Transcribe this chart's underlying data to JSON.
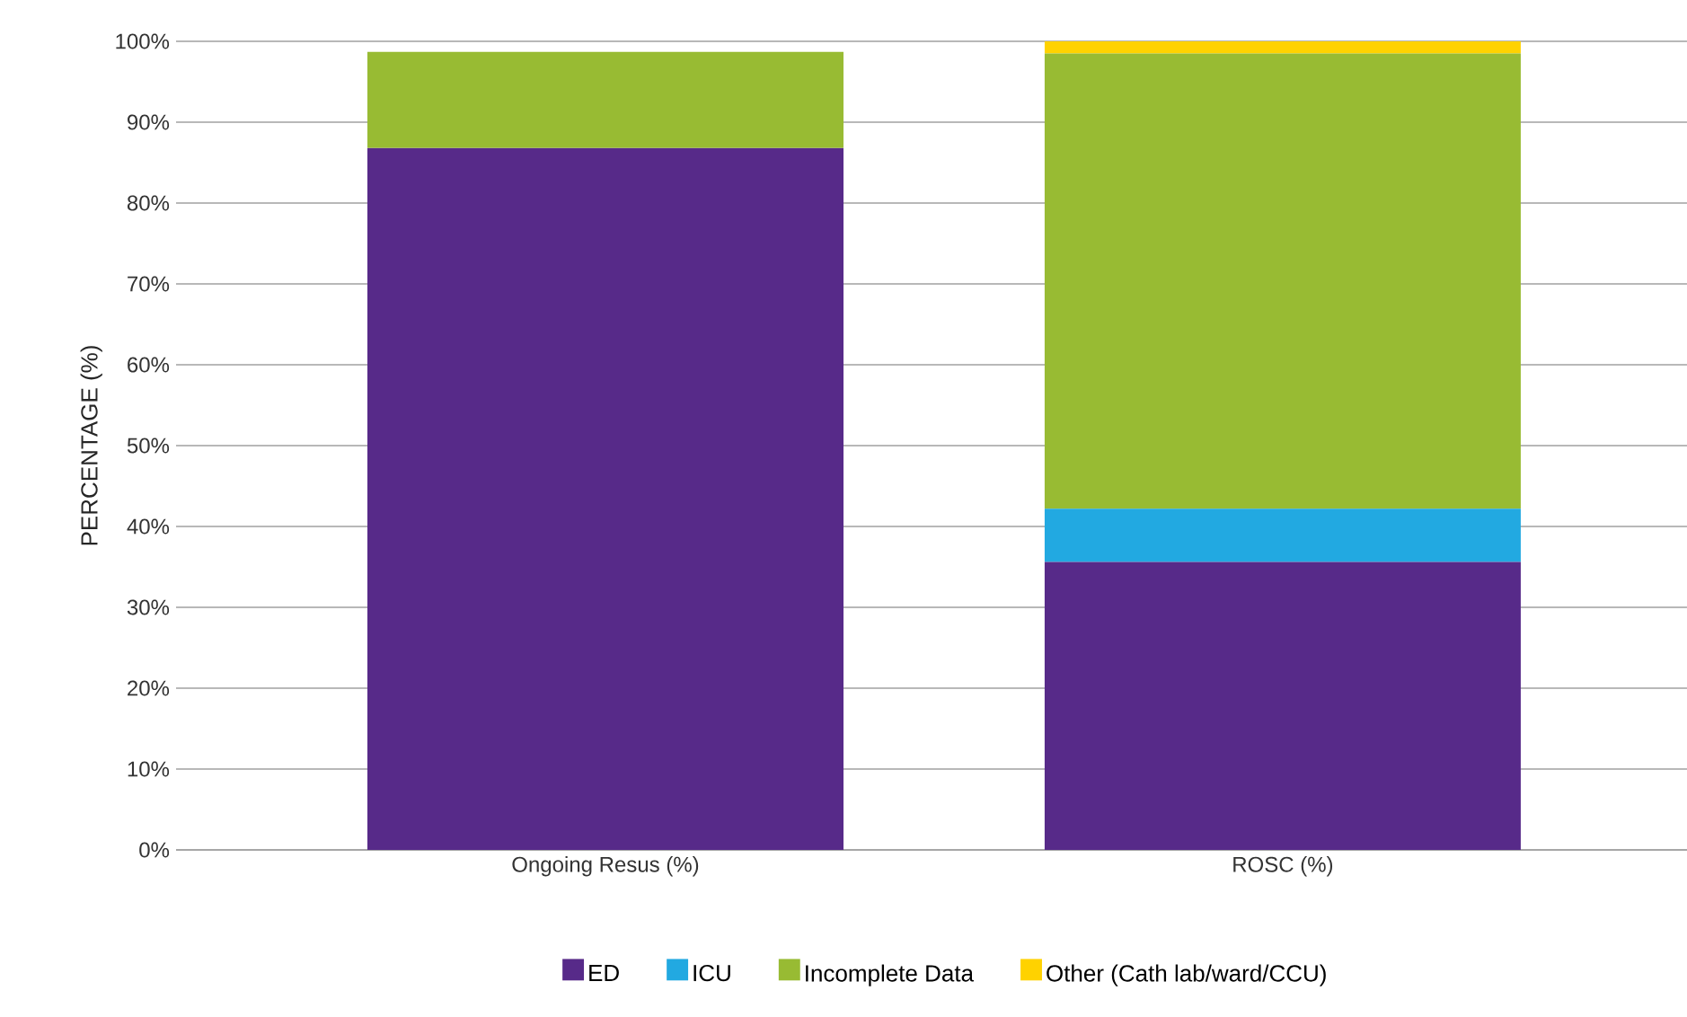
{
  "chart_data": {
    "type": "bar",
    "stacked": true,
    "ylabel": "PERCENTAGE (%)",
    "categories": [
      "Ongoing Resus (%)",
      "ROSC (%)"
    ],
    "series": [
      {
        "name": "ED",
        "color": "#572a89",
        "values": [
          86.8,
          35.6
        ]
      },
      {
        "name": "ICU",
        "color": "#22a9e1",
        "values": [
          0,
          6.6
        ]
      },
      {
        "name": "Incomplete Data",
        "color": "#98bb33",
        "values": [
          11.9,
          56.3
        ]
      },
      {
        "name": "Other (Cath lab/ward/CCU)",
        "color": "#ffd200",
        "values": [
          0,
          1.5
        ]
      }
    ],
    "ylim": [
      0,
      100
    ],
    "yticks": [
      {
        "value": 0,
        "label": "0%"
      },
      {
        "value": 10,
        "label": "10%"
      },
      {
        "value": 20,
        "label": "20%"
      },
      {
        "value": 30,
        "label": "30%"
      },
      {
        "value": 40,
        "label": "40%"
      },
      {
        "value": 50,
        "label": "50%"
      },
      {
        "value": 60,
        "label": "60%"
      },
      {
        "value": 70,
        "label": "70%"
      },
      {
        "value": 80,
        "label": "80%"
      },
      {
        "value": 90,
        "label": "90%"
      },
      {
        "value": 100,
        "label": "100%"
      }
    ],
    "grid": "y",
    "legend": "bottom"
  }
}
